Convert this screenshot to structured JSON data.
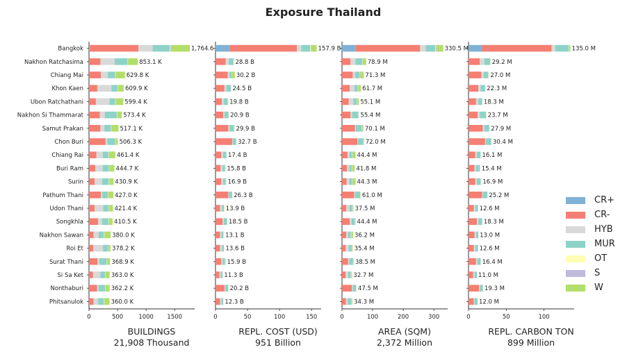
{
  "title": "Exposure Thailand",
  "chart_data": {
    "type": "bar",
    "orientation": "horizontal",
    "stacked": true,
    "title": "Exposure Thailand",
    "categories": [
      "Bangkok",
      "Nakhon Ratchasima",
      "Chiang Mai",
      "Khon Kaen",
      "Ubon Ratchathani",
      "Nakhon Si Thammarat",
      "Samut Prakan",
      "Chon Buri",
      "Chiang Rai",
      "Buri Ram",
      "Surin",
      "Pathum Thani",
      "Udon Thani",
      "Songkhla",
      "Nakhon Sawan",
      "Roi Et",
      "Surat Thani",
      "Si Sa Ket",
      "Nonthaburi",
      "Phitsanulok"
    ],
    "legend": {
      "position": "right",
      "entries": [
        {
          "name": "CR+",
          "color": "#7fb2d5"
        },
        {
          "name": "CR-",
          "color": "#f47f72"
        },
        {
          "name": "HYB",
          "color": "#d9d9d9"
        },
        {
          "name": "MUR",
          "color": "#8dd3c7"
        },
        {
          "name": "OT",
          "color": "#ffffb3"
        },
        {
          "name": "S",
          "color": "#bebada"
        },
        {
          "name": "W",
          "color": "#b3de69"
        }
      ]
    },
    "panels": [
      {
        "xlabel": "BUILDINGS",
        "total_label": "21,908 Thousand",
        "xlim": [
          0,
          1850
        ],
        "xticks": [
          0,
          500,
          1000,
          1500
        ],
        "totals": [
          "1,764.6",
          "853.1 K",
          "629.8 K",
          "609.9 K",
          "599.4 K",
          "573.4 K",
          "517.1 K",
          "506.3 K",
          "461.4 K",
          "444.7 K",
          "430.9 K",
          "427.0 K",
          "421.4 K",
          "410.5 K",
          "380.0 K",
          "378.2 K",
          "368.9 K",
          "363.0 K",
          "362.2 K",
          "360.0 K"
        ],
        "stacks": [
          [
            15,
            850,
            250,
            300,
            10,
            15,
            325
          ],
          [
            0,
            200,
            250,
            220,
            5,
            10,
            170
          ],
          [
            0,
            210,
            120,
            130,
            5,
            5,
            160
          ],
          [
            0,
            145,
            250,
            105,
            5,
            5,
            100
          ],
          [
            0,
            120,
            240,
            100,
            5,
            5,
            130
          ],
          [
            0,
            190,
            90,
            210,
            5,
            5,
            75
          ],
          [
            0,
            200,
            70,
            110,
            5,
            5,
            127
          ],
          [
            0,
            290,
            30,
            140,
            5,
            5,
            36
          ],
          [
            0,
            130,
            110,
            100,
            5,
            5,
            111
          ],
          [
            0,
            110,
            130,
            110,
            5,
            5,
            85
          ],
          [
            0,
            100,
            130,
            120,
            5,
            5,
            71
          ],
          [
            0,
            210,
            20,
            100,
            5,
            5,
            87
          ],
          [
            0,
            100,
            150,
            90,
            5,
            5,
            71
          ],
          [
            0,
            160,
            70,
            110,
            5,
            5,
            65
          ],
          [
            0,
            80,
            90,
            90,
            5,
            5,
            110
          ],
          [
            0,
            75,
            170,
            90,
            5,
            5,
            33
          ],
          [
            0,
            150,
            30,
            130,
            5,
            5,
            49
          ],
          [
            0,
            70,
            130,
            80,
            5,
            5,
            73
          ],
          [
            0,
            140,
            30,
            110,
            5,
            5,
            72
          ],
          [
            0,
            80,
            80,
            100,
            5,
            5,
            90
          ]
        ]
      },
      {
        "xlabel": "REPL. COST (USD)",
        "total_label": "951 Billion",
        "xlim": [
          0,
          165
        ],
        "xticks": [
          0,
          50,
          100,
          150
        ],
        "totals": [
          "157.9 B",
          "28.8 B",
          "30.2 B",
          "24.5 B",
          "19.8 B",
          "20.9 B",
          "29.9 B",
          "32.7 B",
          "17.4 B",
          "15.8 B",
          "16.9 B",
          "26.3 B",
          "13.9 B",
          "18.5 B",
          "13.1 B",
          "13.6 B",
          "15.9 B",
          "11.3 B",
          "20.2 B",
          "12.3 B"
        ],
        "stacks": [
          [
            22,
            105,
            7,
            14,
            1,
            1,
            8
          ],
          [
            0,
            16,
            5,
            7,
            0.3,
            0.2,
            0.3
          ],
          [
            0,
            19,
            3,
            3,
            0.2,
            0.2,
            4.8
          ],
          [
            0,
            14,
            3,
            7,
            0.2,
            0.1,
            0.2
          ],
          [
            0,
            10,
            3,
            6,
            0.3,
            0.2,
            0.3
          ],
          [
            0,
            12,
            2,
            6,
            0.3,
            0.3,
            0.3
          ],
          [
            0,
            20,
            2,
            7,
            0.3,
            0.3,
            0.3
          ],
          [
            0,
            26,
            1,
            5,
            0.3,
            0.2,
            0.2
          ],
          [
            0,
            9,
            3,
            5,
            0.2,
            0.1,
            0.1
          ],
          [
            0,
            8,
            3,
            4,
            0.3,
            0.2,
            0.3
          ],
          [
            0,
            9,
            3,
            4,
            0.3,
            0.3,
            0.3
          ],
          [
            0,
            20,
            1,
            5,
            0.1,
            0.1,
            0.1
          ],
          [
            0,
            7,
            3,
            3,
            0.3,
            0.3,
            0.3
          ],
          [
            0,
            11,
            2,
            5,
            0.2,
            0.1,
            0.2
          ],
          [
            0,
            7,
            2,
            3,
            0.4,
            0.3,
            0.4
          ],
          [
            0,
            7,
            3,
            3,
            0.2,
            0.2,
            0.2
          ],
          [
            0,
            9,
            2,
            4,
            0.3,
            0.3,
            0.3
          ],
          [
            0,
            6,
            2,
            3,
            0.1,
            0.1,
            0.1
          ],
          [
            0,
            14,
            1,
            5,
            0.1,
            0.05,
            0.05
          ],
          [
            0,
            7,
            2,
            3,
            0.1,
            0.1,
            0.1
          ]
        ]
      },
      {
        "xlabel": "AREA (SQM)",
        "total_label": "2,372 Million",
        "xlim": [
          0,
          345
        ],
        "xticks": [
          0,
          100,
          200,
          300
        ],
        "totals": [
          "330.5 M",
          "78.9 M",
          "71.3 M",
          "61.7 M",
          "55.1 M",
          "55.4 M",
          "70.1 M",
          "72.0 M",
          "44.4 M",
          "41.8 M",
          "44.3 M",
          "61.0 M",
          "37.5 M",
          "44.4 M",
          "36.2 M",
          "35.4 M",
          "38.5 M",
          "32.7 M",
          "47.5 M",
          "34.3 M"
        ],
        "stacks": [
          [
            45,
            210,
            18,
            32,
            2,
            1.5,
            22
          ],
          [
            0,
            28,
            16,
            22,
            1,
            1,
            10.9
          ],
          [
            0,
            35,
            8,
            15,
            1,
            1,
            11.3
          ],
          [
            0,
            25,
            16,
            11,
            1,
            1,
            7.7
          ],
          [
            0,
            22,
            15,
            11,
            1,
            1,
            5.1
          ],
          [
            0,
            28,
            5,
            20,
            0.8,
            0.8,
            0.8
          ],
          [
            0,
            42,
            3,
            20,
            1,
            1,
            3.1
          ],
          [
            0,
            50,
            2,
            18,
            0.7,
            0.7,
            0.6
          ],
          [
            0,
            18,
            7,
            8,
            1,
            1,
            9.4
          ],
          [
            0,
            16,
            8,
            8,
            1,
            1,
            7.8
          ],
          [
            0,
            15,
            9,
            9,
            1,
            1,
            9.3
          ],
          [
            0,
            40,
            3,
            16,
            0.7,
            0.7,
            0.6
          ],
          [
            0,
            14,
            10,
            10,
            1,
            1,
            1.5
          ],
          [
            0,
            25,
            6,
            11,
            0.8,
            0.8,
            0.8
          ],
          [
            0,
            14,
            6,
            9,
            1,
            1,
            5.2
          ],
          [
            0,
            12,
            10,
            10,
            1,
            1,
            1.4
          ],
          [
            0,
            20,
            4,
            12,
            0.8,
            0.8,
            0.9
          ],
          [
            0,
            12,
            8,
            9,
            1,
            1,
            1.7
          ],
          [
            0,
            32,
            3,
            11,
            0.5,
            0.5,
            0.5
          ],
          [
            0,
            13,
            6,
            12,
            1,
            1,
            1.3
          ]
        ]
      },
      {
        "xlabel": "REPL. CARBON TON",
        "total_label": "899 Million",
        "xlim": [
          0,
          140
        ],
        "xticks": [
          0,
          50,
          100
        ],
        "totals": [
          "135.0 M",
          "29.2 M",
          "27.0 M",
          "22.3 M",
          "18.3 M",
          "23.7 M",
          "27.9 M",
          "30.4 M",
          "16.1 M",
          "15.4 M",
          "16.9 M",
          "25.2 M",
          "12.6 M",
          "18.3 M",
          "13.0 M",
          "12.6 M",
          "16.4 M",
          "11.0 M",
          "19.3 M",
          "12.0 M"
        ],
        "stacks": [
          [
            18,
            92,
            5,
            18,
            0.5,
            0.5,
            1
          ],
          [
            0,
            15,
            6,
            7.5,
            0.3,
            0.2,
            0.2
          ],
          [
            0,
            17,
            3,
            6,
            0.4,
            0.3,
            0.3
          ],
          [
            0,
            13,
            3,
            6,
            0.1,
            0.1,
            0.1
          ],
          [
            0,
            10,
            3,
            5,
            0.1,
            0.1,
            0.1
          ],
          [
            0,
            12,
            3,
            8,
            0.3,
            0.2,
            0.2
          ],
          [
            0,
            19,
            2,
            6.5,
            0.2,
            0.1,
            0.1
          ],
          [
            0,
            22,
            1,
            7,
            0.2,
            0.1,
            0.1
          ],
          [
            0,
            9,
            2,
            5,
            0.05,
            0.05,
            0
          ],
          [
            0,
            8,
            2,
            5,
            0.2,
            0.1,
            0.1
          ],
          [
            0,
            9,
            2,
            5,
            0.3,
            0.3,
            0.3
          ],
          [
            0,
            18,
            1,
            6,
            0.1,
            0.05,
            0.05
          ],
          [
            0,
            7,
            2,
            3.5,
            0.05,
            0.05,
            0
          ],
          [
            0,
            11,
            2,
            5,
            0.1,
            0.1,
            0.1
          ],
          [
            0,
            8,
            2,
            3,
            0,
            0,
            0
          ],
          [
            0,
            7,
            2,
            3.5,
            0.05,
            0.05,
            0
          ],
          [
            0,
            10,
            2,
            4,
            0.2,
            0.1,
            0.1
          ],
          [
            0,
            6,
            2,
            3,
            0,
            0,
            0
          ],
          [
            0,
            14,
            1,
            4,
            0.1,
            0.1,
            0.1
          ],
          [
            0,
            7,
            1,
            4,
            0,
            0,
            0
          ]
        ]
      }
    ]
  }
}
